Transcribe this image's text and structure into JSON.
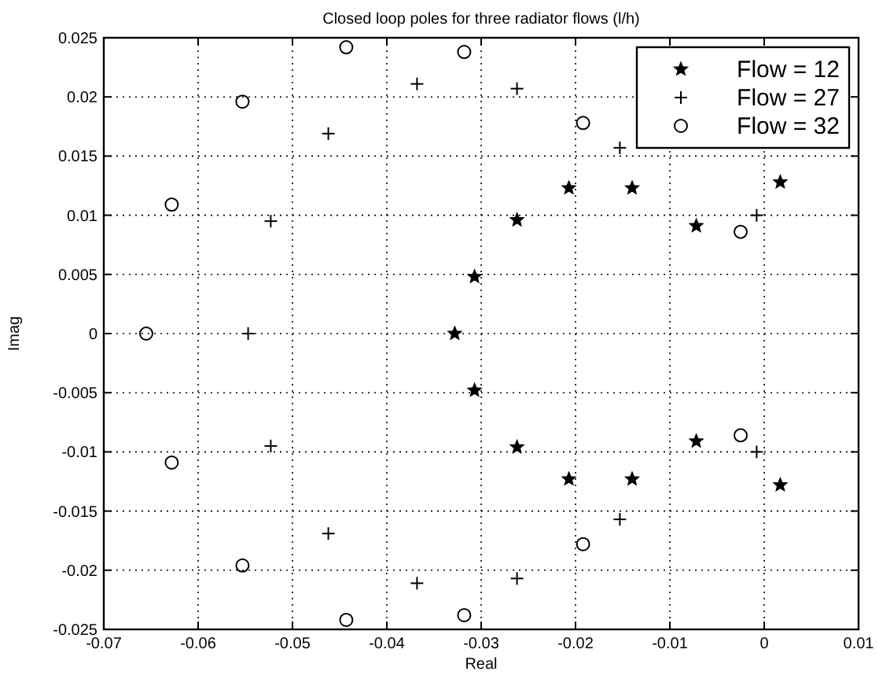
{
  "chart_data": {
    "type": "scatter",
    "title": "Closed loop poles for three radiator flows (l/h)",
    "xlabel": "Real",
    "ylabel": "Imag",
    "xlim": [
      -0.07,
      0.01
    ],
    "xticks": [
      -0.07,
      -0.06,
      -0.05,
      -0.04,
      -0.03,
      -0.02,
      -0.01,
      0,
      0.01
    ],
    "ylim": [
      -0.025,
      0.025
    ],
    "yticks": [
      -0.025,
      -0.02,
      -0.015,
      -0.01,
      -0.005,
      0,
      0.005,
      0.01,
      0.015,
      0.02,
      0.025
    ],
    "grid": true,
    "legend": "top right",
    "series": [
      {
        "name": "Flow = 12",
        "color": "#000000",
        "marker": "star",
        "x": [
          -0.0328,
          -0.0307,
          -0.0307,
          -0.0262,
          -0.0262,
          -0.0207,
          -0.0207,
          -0.014,
          -0.014,
          -0.0072,
          -0.0072,
          0.0017,
          0.0017
        ],
        "values": [
          0,
          0.0048,
          -0.0048,
          0.0096,
          -0.0096,
          0.0123,
          -0.0123,
          0.0123,
          -0.0123,
          0.0091,
          -0.0091,
          0.0128,
          -0.0128
        ]
      },
      {
        "name": "Flow = 27",
        "color": "#000000",
        "marker": "cross",
        "x": [
          -0.0547,
          -0.0523,
          -0.0523,
          -0.0462,
          -0.0462,
          -0.0368,
          -0.0368,
          -0.0262,
          -0.0262,
          -0.0153,
          -0.0153,
          -0.0008,
          -0.0008
        ],
        "values": [
          0,
          0.0095,
          -0.0095,
          0.0169,
          -0.0169,
          0.0211,
          -0.0211,
          0.0207,
          -0.0207,
          -0.0157,
          0.0157,
          0.01,
          -0.01
        ]
      },
      {
        "name": "Flow = 32",
        "color": "#000000",
        "marker": "circle",
        "x": [
          -0.0655,
          -0.0628,
          -0.0628,
          -0.0553,
          -0.0553,
          -0.0443,
          -0.0443,
          -0.0318,
          -0.0318,
          -0.0192,
          -0.0192,
          -0.0025,
          -0.0025
        ],
        "values": [
          0,
          0.0109,
          -0.0109,
          0.0196,
          -0.0196,
          0.0242,
          -0.0242,
          0.0238,
          -0.0238,
          0.0178,
          -0.0178,
          0.0086,
          -0.0086
        ]
      }
    ]
  }
}
